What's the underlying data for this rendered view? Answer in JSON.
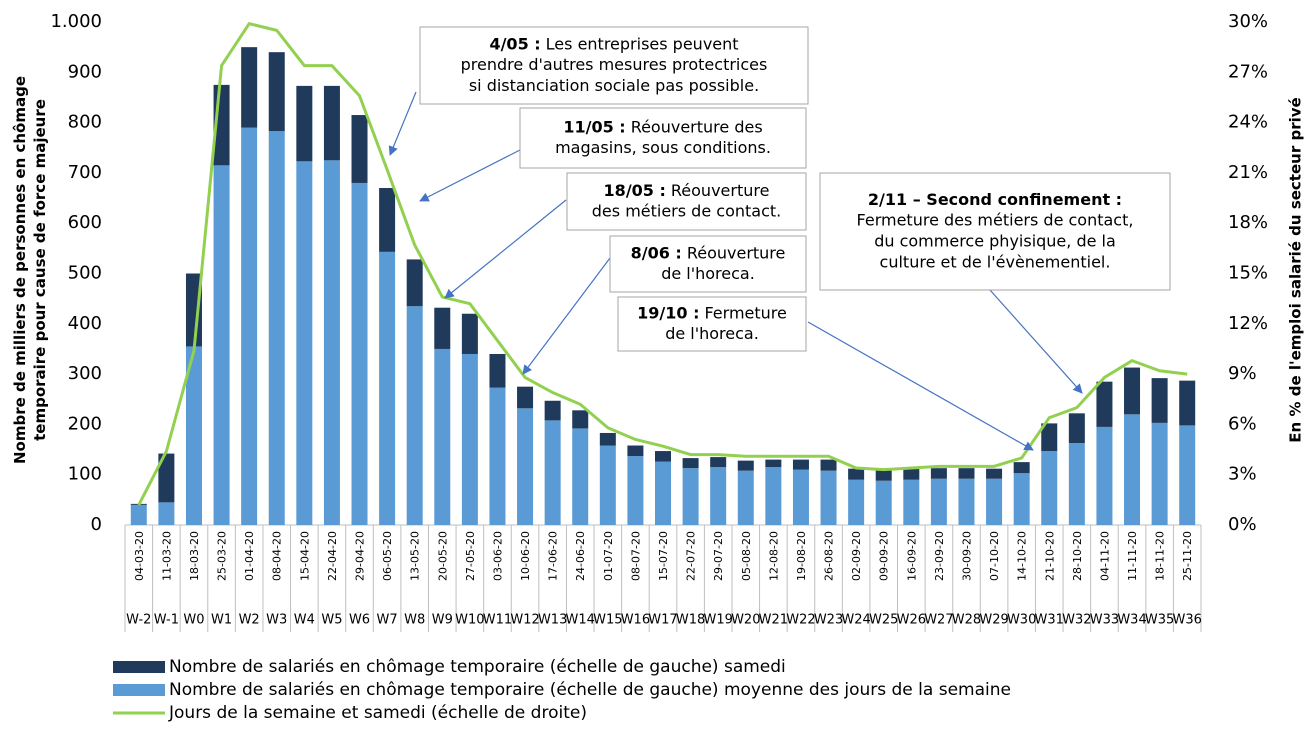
{
  "chart_data": {
    "type": "bar_line",
    "ylabel": [
      "Nombre de milliers de personnes en chômage",
      "temporaire pour cause de force majeure"
    ],
    "y2label": "En % de l'emploi salarié du secteur privé",
    "categories": [
      "04-03-20",
      "11-03-20",
      "18-03-20",
      "25-03-20",
      "01-04-20",
      "08-04-20",
      "15-04-20",
      "22-04-20",
      "29-04-20",
      "06-05-20",
      "13-05-20",
      "20-05-20",
      "27-05-20",
      "03-06-20",
      "10-06-20",
      "17-06-20",
      "24-06-20",
      "01-07-20",
      "08-07-20",
      "15-07-20",
      "22-07-20",
      "29-07-20",
      "05-08-20",
      "12-08-20",
      "19-08-20",
      "26-08-20",
      "02-09-20",
      "09-09-20",
      "16-09-20",
      "23-09-20",
      "30-09-20",
      "07-10-20",
      "14-10-20",
      "21-10-20",
      "28-10-20",
      "04-11-20",
      "11-11-20",
      "18-11-20",
      "25-11-20"
    ],
    "weeks": [
      "W-2",
      "W-1",
      "W0",
      "W1",
      "W2",
      "W3",
      "W4",
      "W5",
      "W6",
      "W7",
      "W8",
      "W9",
      "W10",
      "W11",
      "W12",
      "W13",
      "W14",
      "W15",
      "W16",
      "W17",
      "W18",
      "W19",
      "W20",
      "W21",
      "W22",
      "W23",
      "W24",
      "W25",
      "W26",
      "W27",
      "W28",
      "W29",
      "W30",
      "W31",
      "W32",
      "W33",
      "W34",
      "W35",
      "W36"
    ],
    "series": [
      {
        "name": "Nombre de salariés en chômage temporaire (échelle de gauche) moyenne des jours de la semaine",
        "color": "#5b9bd5",
        "stack": "bottom",
        "values": [
          40,
          45,
          355,
          715,
          790,
          783,
          723,
          725,
          680,
          543,
          435,
          350,
          340,
          273,
          232,
          208,
          192,
          158,
          137,
          126,
          113,
          115,
          108,
          115,
          110,
          108,
          90,
          88,
          90,
          92,
          92,
          92,
          103,
          147,
          163,
          195,
          220,
          203,
          198
        ]
      },
      {
        "name": "Nombre de salariés en chômage temporaire (échelle de gauche) samedi",
        "color": "#203a5c",
        "stack": "top",
        "values": [
          2,
          97,
          145,
          160,
          160,
          157,
          150,
          148,
          135,
          127,
          93,
          82,
          80,
          67,
          43,
          39,
          36,
          25,
          21,
          21,
          20,
          20,
          20,
          15,
          20,
          22,
          22,
          22,
          22,
          21,
          21,
          20,
          22,
          55,
          59,
          90,
          93,
          89,
          89
        ]
      },
      {
        "name": "Jours de la semaine et samedi (échelle de droite)",
        "color": "#92d050",
        "axis": "y2",
        "kind": "line",
        "values": [
          1.2,
          4.4,
          10.4,
          27.4,
          29.9,
          29.5,
          27.4,
          27.4,
          25.6,
          21.2,
          16.7,
          13.6,
          13.2,
          11,
          8.8,
          7.9,
          7.2,
          5.8,
          5.1,
          4.7,
          4.2,
          4.2,
          4.1,
          4.1,
          4.1,
          4.1,
          3.4,
          3.3,
          3.4,
          3.5,
          3.5,
          3.5,
          4,
          6.4,
          7,
          8.8,
          9.8,
          9.2,
          9
        ]
      }
    ],
    "legend_order": [
      1,
      0,
      2
    ],
    "ylim": [
      0,
      1000
    ],
    "yticks": [
      0,
      100,
      200,
      300,
      400,
      500,
      600,
      700,
      800,
      900,
      {
        "value": 1000,
        "label": "1.000"
      }
    ],
    "y2lim": [
      0,
      30
    ],
    "y2ticks": [
      {
        "value": 0,
        "label": "0%"
      },
      {
        "value": 3,
        "label": "3%"
      },
      {
        "value": 6,
        "label": "6%"
      },
      {
        "value": 9,
        "label": "9%"
      },
      {
        "value": 12,
        "label": "12%"
      },
      {
        "value": 15,
        "label": "15%"
      },
      {
        "value": 18,
        "label": "18%"
      },
      {
        "value": 21,
        "label": "21%"
      },
      {
        "value": 24,
        "label": "24%"
      },
      {
        "value": 27,
        "label": "27%"
      },
      {
        "value": 30,
        "label": "30%"
      }
    ],
    "annotations": [
      {
        "lines": [
          {
            "bold": "4/05 :",
            "text": "Les entreprises peuvent"
          },
          "prendre d'autres mesures protectrices",
          "si distanciation sociale pas possible."
        ]
      },
      {
        "lines": [
          {
            "bold": "11/05 :",
            "text": "Réouverture des"
          },
          "magasins, sous conditions."
        ]
      },
      {
        "lines": [
          {
            "bold": "18/05 :",
            "text": "Réouverture"
          },
          "des métiers de contact."
        ]
      },
      {
        "lines": [
          {
            "bold": "8/06 :",
            "text": "Réouverture"
          },
          "de l'horeca."
        ]
      },
      {
        "lines": [
          {
            "bold": "19/10 :",
            "text": "Fermeture"
          },
          "de l'horeca."
        ]
      },
      {
        "lines": [
          {
            "bold": "2/11 – Second confinement :"
          },
          "Fermeture des métiers de contact,",
          "du commerce phyisique, de la",
          "culture et de l'évènementiel."
        ]
      }
    ]
  }
}
